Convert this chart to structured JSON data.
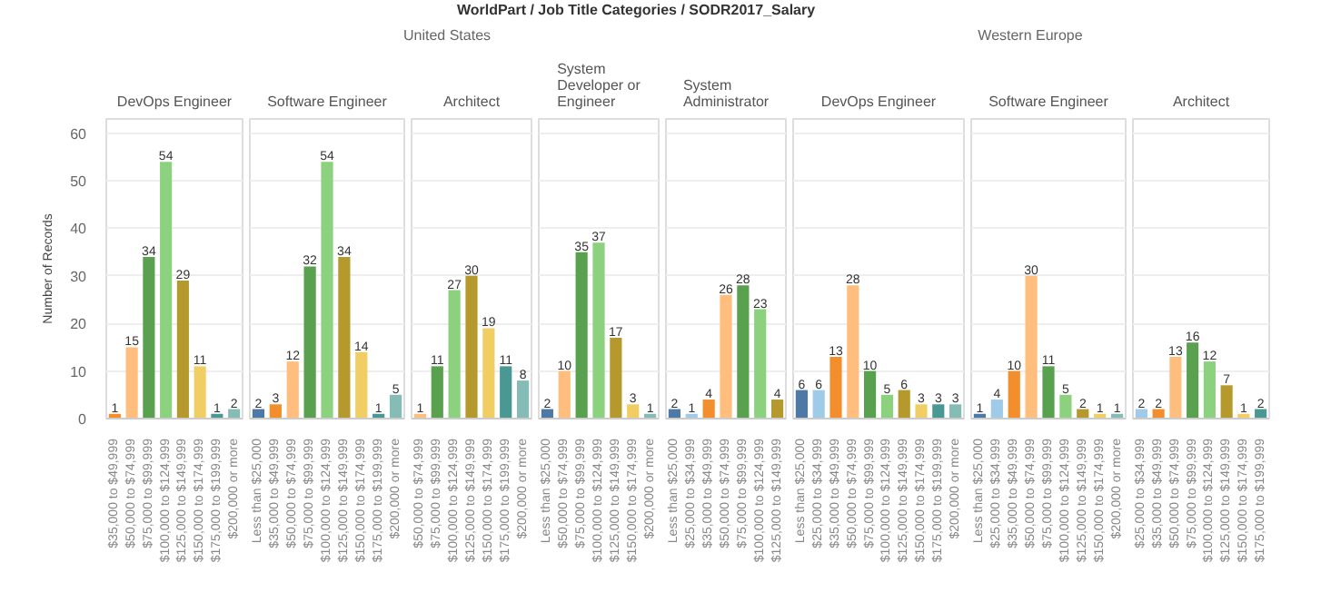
{
  "chart_data": [
    {
      "type": "bar",
      "title": "DevOps Engineer",
      "annotations": [
        "WorldPart / Job Title Categories / SODR2017_Salary",
        "United States"
      ],
      "ylabel": "Number of Records",
      "ylim": [
        0,
        63
      ],
      "yticks": [
        0,
        10,
        20,
        30,
        40,
        50,
        60
      ],
      "grid": "y",
      "data_labels": true,
      "categories": [
        "$35,000 to $49,999",
        "$50,000 to $74,999",
        "$75,000 to $99,999",
        "$100,000 to $124,999",
        "$125,000 to $149,999",
        "$150,000 to $174,999",
        "$175,000 to $199,999",
        "$200,000 or more"
      ],
      "values": [
        1,
        15,
        34,
        54,
        29,
        11,
        1,
        2
      ],
      "colors": [
        "#f28e2b",
        "#ffbe7d",
        "#59a14f",
        "#8cd17d",
        "#b6992d",
        "#f1ce63",
        "#499894",
        "#86bcb6"
      ]
    },
    {
      "type": "bar",
      "title": "Software Engineer",
      "ylim": [
        0,
        63
      ],
      "yticks": [
        0,
        10,
        20,
        30,
        40,
        50,
        60
      ],
      "grid": "y",
      "data_labels": true,
      "tick_labels": "x",
      "categories": [
        "Less than $25,000",
        "$35,000 to $49,999",
        "$50,000 to $74,999",
        "$75,000 to $99,999",
        "$100,000 to $124,999",
        "$125,000 to $149,999",
        "$150,000 to $174,999",
        "$175,000 to $199,999",
        "$200,000 or more"
      ],
      "values": [
        2,
        3,
        12,
        32,
        54,
        34,
        14,
        1,
        5
      ],
      "colors": [
        "#4e79a7",
        "#f28e2b",
        "#ffbe7d",
        "#59a14f",
        "#8cd17d",
        "#b6992d",
        "#f1ce63",
        "#499894",
        "#86bcb6"
      ]
    },
    {
      "type": "bar",
      "title": "Architect",
      "ylim": [
        0,
        63
      ],
      "yticks": [
        0,
        10,
        20,
        30,
        40,
        50,
        60
      ],
      "grid": "y",
      "data_labels": true,
      "tick_labels": "x",
      "categories": [
        "$50,000 to $74,999",
        "$75,000 to $99,999",
        "$100,000 to $124,999",
        "$125,000 to $149,999",
        "$150,000 to $174,999",
        "$175,000 to $199,999",
        "$200,000 or more"
      ],
      "values": [
        1,
        11,
        27,
        30,
        19,
        11,
        8
      ],
      "colors": [
        "#ffbe7d",
        "#59a14f",
        "#8cd17d",
        "#b6992d",
        "#f1ce63",
        "#499894",
        "#86bcb6"
      ]
    },
    {
      "type": "bar",
      "title": "System Developer or Engineer",
      "ylim": [
        0,
        63
      ],
      "yticks": [
        0,
        10,
        20,
        30,
        40,
        50,
        60
      ],
      "grid": "y",
      "data_labels": true,
      "tick_labels": "x",
      "categories": [
        "Less than $25,000",
        "$50,000 to $74,999",
        "$75,000 to $99,999",
        "$100,000 to $124,999",
        "$125,000 to $149,999",
        "$150,000 to $174,999",
        "$200,000 or more"
      ],
      "values": [
        2,
        10,
        35,
        37,
        17,
        3,
        1
      ],
      "colors": [
        "#4e79a7",
        "#ffbe7d",
        "#59a14f",
        "#8cd17d",
        "#b6992d",
        "#f1ce63",
        "#86bcb6"
      ]
    },
    {
      "type": "bar",
      "title": "System Administrator",
      "ylim": [
        0,
        63
      ],
      "yticks": [
        0,
        10,
        20,
        30,
        40,
        50,
        60
      ],
      "grid": "y",
      "data_labels": true,
      "tick_labels": "x",
      "categories": [
        "Less than $25,000",
        "$25,000 to $34,999",
        "$35,000 to $49,999",
        "$50,000 to $74,999",
        "$75,000 to $99,999",
        "$100,000 to $124,999",
        "$125,000 to $149,999"
      ],
      "values": [
        2,
        1,
        4,
        26,
        28,
        23,
        4
      ],
      "colors": [
        "#4e79a7",
        "#a0cbe8",
        "#f28e2b",
        "#ffbe7d",
        "#59a14f",
        "#8cd17d",
        "#b6992d"
      ]
    },
    {
      "type": "bar",
      "title": "DevOps Engineer",
      "annotations": [
        "Western Europe"
      ],
      "ylim": [
        0,
        63
      ],
      "yticks": [
        0,
        10,
        20,
        30,
        40,
        50,
        60
      ],
      "grid": "y",
      "data_labels": true,
      "tick_labels": "x",
      "categories": [
        "Less than $25,000",
        "$25,000 to $34,999",
        "$35,000 to $49,999",
        "$50,000 to $74,999",
        "$75,000 to $99,999",
        "$100,000 to $124,999",
        "$125,000 to $149,999",
        "$150,000 to $174,999",
        "$175,000 to $199,999",
        "$200,000 or more"
      ],
      "values": [
        6,
        6,
        13,
        28,
        10,
        5,
        6,
        3,
        3,
        3
      ],
      "colors": [
        "#4e79a7",
        "#a0cbe8",
        "#f28e2b",
        "#ffbe7d",
        "#59a14f",
        "#8cd17d",
        "#b6992d",
        "#f1ce63",
        "#499894",
        "#86bcb6"
      ]
    },
    {
      "type": "bar",
      "title": "Software Engineer",
      "ylim": [
        0,
        63
      ],
      "yticks": [
        0,
        10,
        20,
        30,
        40,
        50,
        60
      ],
      "grid": "y",
      "data_labels": true,
      "tick_labels": "x",
      "categories": [
        "Less than $25,000",
        "$25,000 to $34,999",
        "$35,000 to $49,999",
        "$50,000 to $74,999",
        "$75,000 to $99,999",
        "$100,000 to $124,999",
        "$125,000 to $149,999",
        "$150,000 to $174,999",
        "$200,000 or more"
      ],
      "values": [
        1,
        4,
        10,
        30,
        11,
        5,
        2,
        1,
        1
      ],
      "colors": [
        "#4e79a7",
        "#a0cbe8",
        "#f28e2b",
        "#ffbe7d",
        "#59a14f",
        "#8cd17d",
        "#b6992d",
        "#f1ce63",
        "#86bcb6"
      ]
    },
    {
      "type": "bar",
      "title": "Architect",
      "ylim": [
        0,
        63
      ],
      "yticks": [
        0,
        10,
        20,
        30,
        40,
        50,
        60
      ],
      "grid": "y",
      "data_labels": true,
      "tick_labels": "x",
      "categories": [
        "$25,000 to $34,999",
        "$35,000 to $49,999",
        "$50,000 to $74,999",
        "$75,000 to $99,999",
        "$100,000 to $124,999",
        "$125,000 to $149,999",
        "$150,000 to $174,999",
        "$175,000 to $199,999"
      ],
      "values": [
        2,
        2,
        13,
        16,
        12,
        7,
        1,
        2
      ],
      "colors": [
        "#a0cbe8",
        "#f28e2b",
        "#ffbe7d",
        "#59a14f",
        "#8cd17d",
        "#b6992d",
        "#f1ce63",
        "#499894"
      ]
    }
  ]
}
